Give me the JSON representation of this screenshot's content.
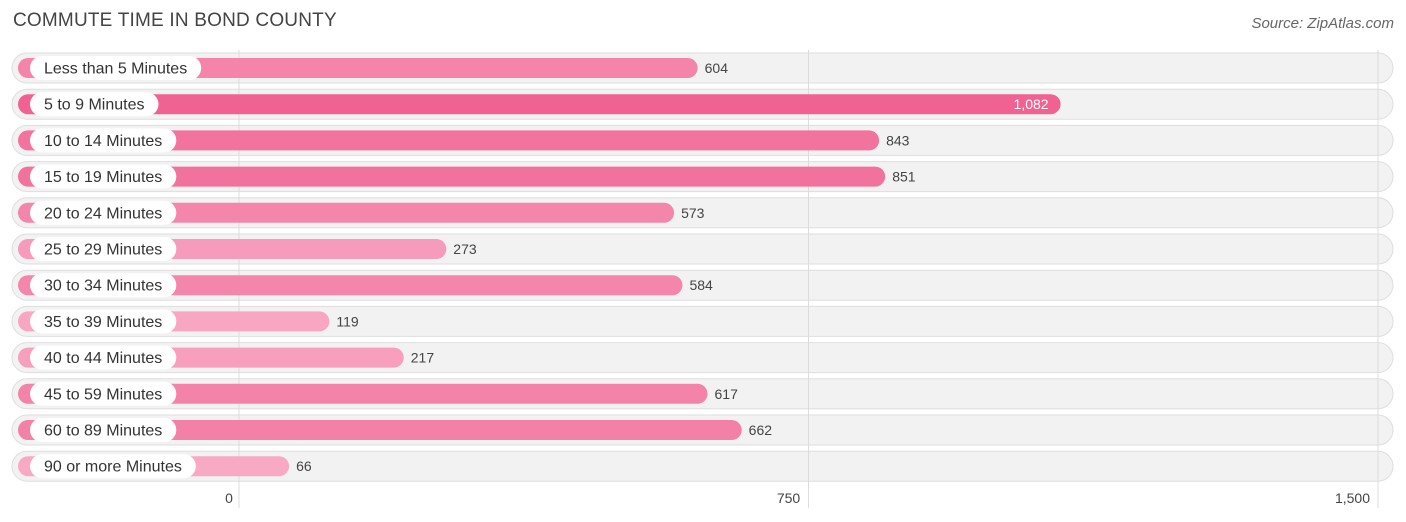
{
  "title": "COMMUTE TIME IN BOND COUNTY",
  "source": "Source: ZipAtlas.com",
  "chart_data": {
    "type": "bar",
    "orientation": "horizontal",
    "title": "COMMUTE TIME IN BOND COUNTY",
    "xlabel": "",
    "ylabel": "",
    "xlim": [
      0,
      1500
    ],
    "ticks": [
      0,
      750,
      1500
    ],
    "tick_labels": [
      "0",
      "750",
      "1,500"
    ],
    "grid": true,
    "categories": [
      "Less than 5 Minutes",
      "5 to 9 Minutes",
      "10 to 14 Minutes",
      "15 to 19 Minutes",
      "20 to 24 Minutes",
      "25 to 29 Minutes",
      "30 to 34 Minutes",
      "35 to 39 Minutes",
      "40 to 44 Minutes",
      "45 to 59 Minutes",
      "60 to 89 Minutes",
      "90 or more Minutes"
    ],
    "values": [
      604,
      1082,
      843,
      851,
      573,
      273,
      584,
      119,
      217,
      617,
      662,
      66
    ],
    "value_labels": [
      "604",
      "1,082",
      "843",
      "851",
      "573",
      "273",
      "584",
      "119",
      "217",
      "617",
      "662",
      "66"
    ],
    "bar_color_max": "#f06292",
    "bar_color_min": "#f8aac5"
  }
}
